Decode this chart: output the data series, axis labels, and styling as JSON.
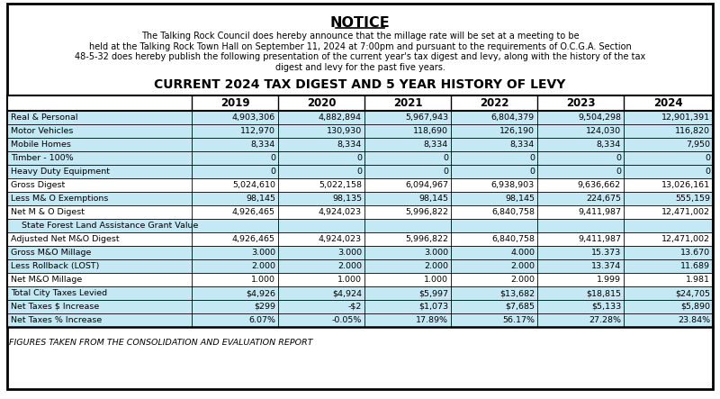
{
  "notice_title": "NOTICE",
  "notice_text_lines": [
    "The Talking Rock Council does hereby announce that the millage rate will be set at a meeting to be",
    "held at the Talking Rock Town Hall on September 11, 2024 at 7:00pm and pursuant to the requirements of O.C.G.A. Section",
    "48-5-32 does hereby publish the following presentation of the current year's tax digest and levy, along with the history of the tax",
    "digest and levy for the past five years."
  ],
  "table_title": "CURRENT 2024 TAX DIGEST AND 5 YEAR HISTORY OF LEVY",
  "columns": [
    "",
    "2019",
    "2020",
    "2021",
    "2022",
    "2023",
    "2024"
  ],
  "rows": [
    [
      "Real & Personal",
      "4,903,306",
      "4,882,894",
      "5,967,943",
      "6,804,379",
      "9,504,298",
      "12,901,391"
    ],
    [
      "Motor Vehicles",
      "112,970",
      "130,930",
      "118,690",
      "126,190",
      "124,030",
      "116,820"
    ],
    [
      "Mobile Homes",
      "8,334",
      "8,334",
      "8,334",
      "8,334",
      "8,334",
      "7,950"
    ],
    [
      "Timber - 100%",
      "0",
      "0",
      "0",
      "0",
      "0",
      "0"
    ],
    [
      "Heavy Duty Equipment",
      "0",
      "0",
      "0",
      "0",
      "0",
      "0"
    ],
    [
      "Gross Digest",
      "5,024,610",
      "5,022,158",
      "6,094,967",
      "6,938,903",
      "9,636,662",
      "13,026,161"
    ],
    [
      "Less M& O Exemptions",
      "98,145",
      "98,135",
      "98,145",
      "98,145",
      "224,675",
      "555,159"
    ],
    [
      "Net M & O Digest",
      "4,926,465",
      "4,924,023",
      "5,996,822",
      "6,840,758",
      "9,411,987",
      "12,471,002"
    ],
    [
      "    State Forest Land Assistance Grant Value",
      "",
      "",
      "",
      "",
      "",
      ""
    ],
    [
      "Adjusted Net M&O Digest",
      "4,926,465",
      "4,924,023",
      "5,996,822",
      "6,840,758",
      "9,411,987",
      "12,471,002"
    ],
    [
      "Gross M&O Millage",
      "3.000",
      "3.000",
      "3.000",
      "4.000",
      "15.373",
      "13.670"
    ],
    [
      "Less Rollback (LOST)",
      "2.000",
      "2.000",
      "2.000",
      "2.000",
      "13.374",
      "11.689"
    ],
    [
      "Net M&O Millage",
      "1.000",
      "1.000",
      "1.000",
      "2.000",
      "1.999",
      "1.981"
    ],
    [
      "Total City Taxes Levied",
      "$4,926",
      "$4,924",
      "$5,997",
      "$13,682",
      "$18,815",
      "$24,705"
    ],
    [
      "Net Taxes $ Increase",
      "$299",
      "-$2",
      "$1,073",
      "$7,685",
      "$5,133",
      "$5,890"
    ],
    [
      "Net Taxes % Increase",
      "6.07%",
      "-0.05%",
      "17.89%",
      "56.17%",
      "27.28%",
      "23.84%"
    ]
  ],
  "light_blue": "#C5E8F5",
  "white": "#FFFFFF",
  "bg_color": "#FFFFFF",
  "footer_text": "FIGURES TAKEN FROM THE CONSOLIDATION AND EVALUATION REPORT",
  "blue_rows": [
    0,
    1,
    2,
    3,
    4,
    6,
    8,
    10,
    11,
    13,
    14,
    15
  ],
  "white_rows": [
    5,
    7,
    9,
    12
  ],
  "fig_w": 8.0,
  "fig_h": 4.43,
  "dpi": 100
}
